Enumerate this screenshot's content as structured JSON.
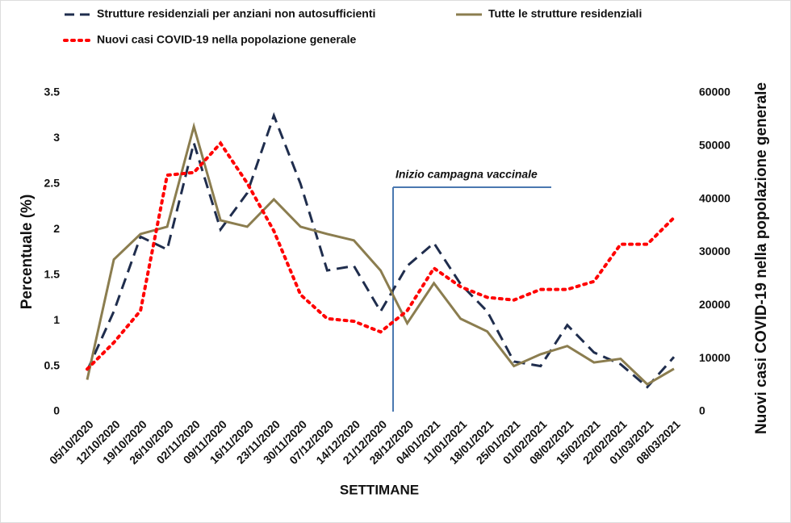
{
  "chart_data": {
    "type": "line",
    "x_label": "SETTIMANE",
    "y_label": "Percentuale (%)",
    "y2_label": "Nuovi casi COVID-19 nella popolazione generale",
    "annotation": "Inizio campagna vaccinale",
    "categories": [
      "05/10/2020",
      "12/10/2020",
      "19/10/2020",
      "26/10/2020",
      "02/11/2020",
      "09/11/2020",
      "16/11/2020",
      "23/11/2020",
      "30/11/2020",
      "07/12/2020",
      "14/12/2020",
      "21/12/2020",
      "28/12/2020",
      "04/01/2021",
      "11/01/2021",
      "18/01/2021",
      "25/01/2021",
      "01/02/2021",
      "08/02/2021",
      "15/02/2021",
      "22/02/2021",
      "01/03/2021",
      "08/03/2021"
    ],
    "series": [
      {
        "name": "Strutture residenziali per anziani non autosufficienti",
        "color": "#1f2d4d",
        "dash": "dashed",
        "values": [
          0.45,
          1.1,
          1.92,
          1.78,
          2.95,
          2.0,
          2.4,
          3.25,
          2.5,
          1.55,
          1.6,
          1.1,
          1.6,
          1.85,
          1.4,
          1.1,
          0.55,
          0.5,
          0.95,
          0.65,
          0.52,
          0.27,
          0.6
        ]
      },
      {
        "name": "Tutte le strutture residenziali",
        "color": "#8b7d4f",
        "dash": "solid",
        "values": [
          0.35,
          1.67,
          1.95,
          2.03,
          3.13,
          2.1,
          2.03,
          2.33,
          2.03,
          1.95,
          1.88,
          1.55,
          0.97,
          1.41,
          1.02,
          0.88,
          0.5,
          0.63,
          0.72,
          0.54,
          0.58,
          0.3,
          0.47
        ]
      },
      {
        "name": "Nuovi casi COVID-19 nella popolazione generale",
        "color": "#ff0000",
        "dash": "dotted",
        "axis": "y2",
        "values": [
          8000,
          13000,
          19000,
          44500,
          45000,
          50500,
          43000,
          34000,
          22000,
          17500,
          17000,
          15000,
          19000,
          27000,
          23500,
          21500,
          21000,
          23000,
          23000,
          24500,
          31500,
          31500,
          36500
        ]
      }
    ],
    "ylim": [
      0,
      3.5
    ],
    "yticks": [
      0,
      0.5,
      1,
      1.5,
      2,
      2.5,
      3,
      3.5
    ],
    "y2lim": [
      0,
      60000
    ],
    "y2ticks": [
      0,
      10000,
      20000,
      30000,
      40000,
      50000,
      60000
    ],
    "grid": false
  }
}
